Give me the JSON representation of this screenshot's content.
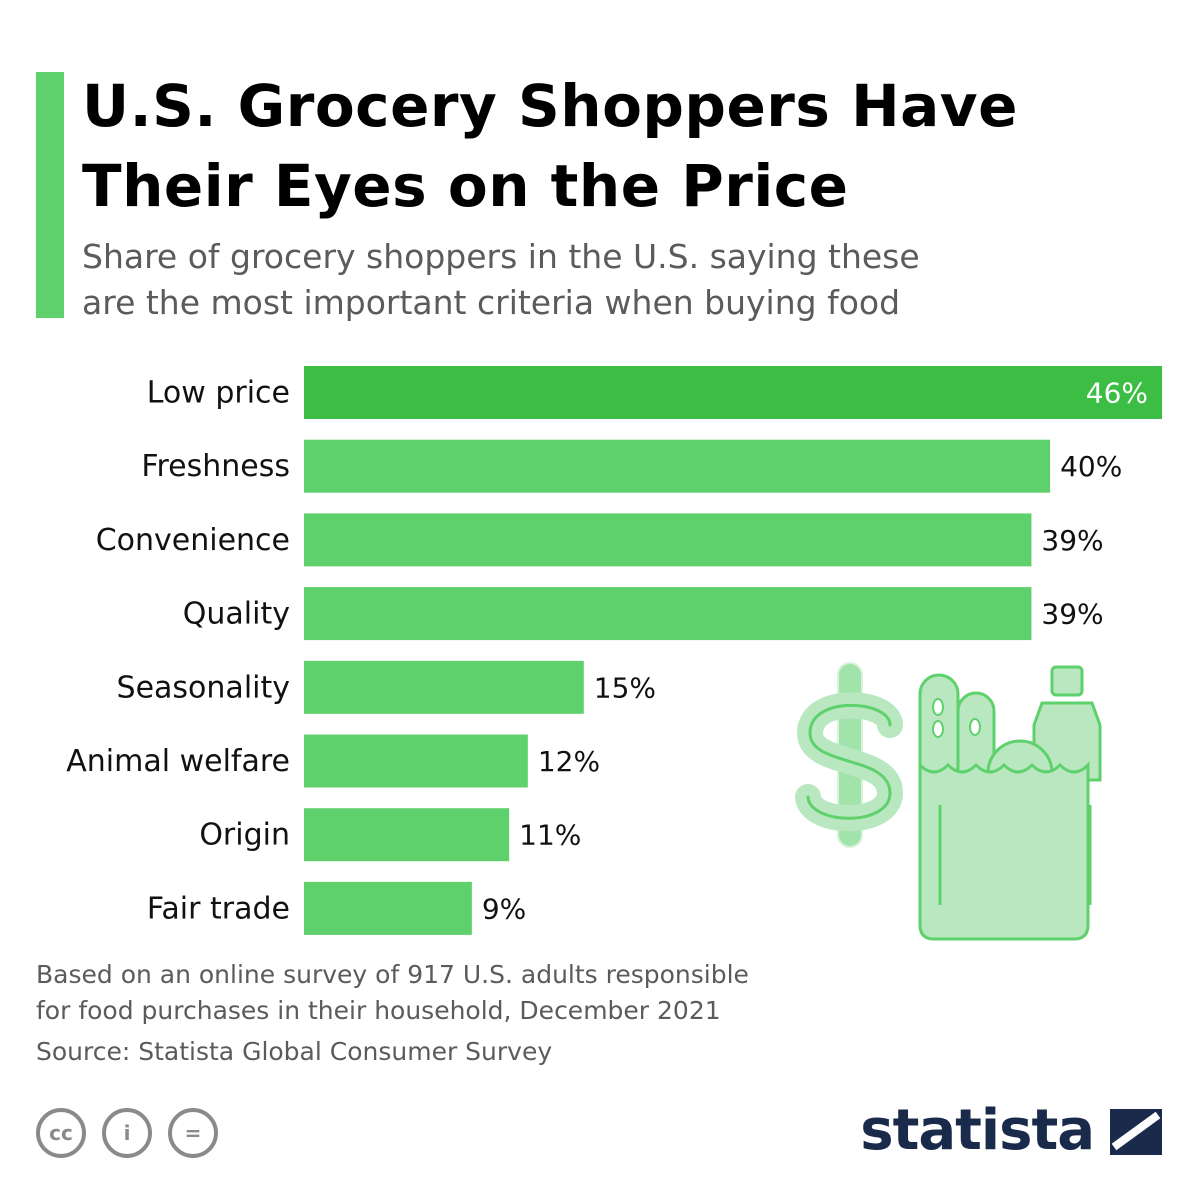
{
  "header": {
    "title_lines": [
      "U.S. Grocery Shoppers Have",
      "Their Eyes on the Price"
    ],
    "subtitle_lines": [
      "Share of grocery shoppers in the U.S. saying these",
      "are the most important criteria when buying food"
    ]
  },
  "chart_data": {
    "type": "bar",
    "orientation": "horizontal",
    "title": "U.S. Grocery Shoppers Have Their Eyes on the Price",
    "subtitle": "Share of grocery shoppers in the U.S. saying these are the most important criteria when buying food",
    "categories": [
      "Low price",
      "Freshness",
      "Convenience",
      "Quality",
      "Seasonality",
      "Animal welfare",
      "Origin",
      "Fair trade"
    ],
    "values": [
      46,
      40,
      39,
      39,
      15,
      12,
      11,
      9
    ],
    "value_labels": [
      "46%",
      "40%",
      "39%",
      "39%",
      "15%",
      "12%",
      "11%",
      "9%"
    ],
    "unit": "%",
    "xlim": [
      0,
      46
    ],
    "grid": false,
    "legend": "none",
    "highlight_index": 0,
    "colors": {
      "highlight": "#3cbd43",
      "bar": "#5ed16c"
    }
  },
  "footer": {
    "note_lines": [
      "Based on an online survey of 917 U.S. adults responsible",
      "for food purchases in their household, December 2021"
    ],
    "source": "Source: Statista Global Consumer Survey",
    "license_icons": [
      "cc-icon",
      "attribution-icon",
      "no-derivatives-icon"
    ],
    "license_text": [
      "cc",
      "i",
      "="
    ],
    "logo_text": "statista",
    "logo_icon": "statista-logo-icon"
  },
  "illustration": {
    "icons": [
      "dollar-sign-icon",
      "grocery-bag-icon"
    ]
  },
  "colors": {
    "accent": "#5ed16c",
    "title": "#000000",
    "muted_text": "#5b5b5b",
    "logo": "#1a2a4a"
  }
}
